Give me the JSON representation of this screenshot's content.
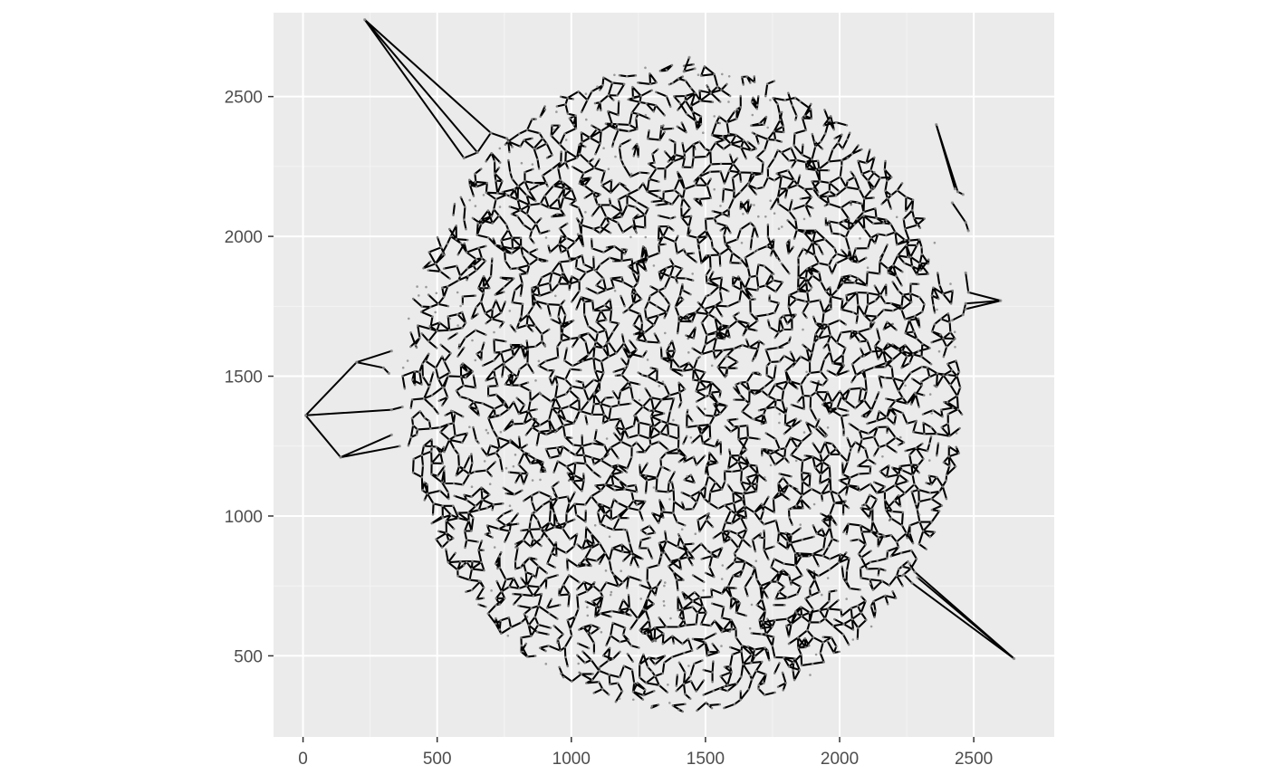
{
  "chart_data": {
    "type": "line",
    "title": "",
    "xlabel": "",
    "ylabel": "",
    "xlim": [
      -110,
      2800
    ],
    "ylim": [
      210,
      2800
    ],
    "x_ticks": [
      0,
      500,
      1000,
      1500,
      2000,
      2500
    ],
    "y_ticks": [
      500,
      1000,
      1500,
      2000,
      2500
    ],
    "x_tick_labels": [
      "0",
      "500",
      "1000",
      "1500",
      "2000",
      "2500"
    ],
    "y_tick_labels": [
      "500",
      "1000",
      "1500",
      "2000",
      "2500"
    ],
    "grid": true,
    "legend": "none",
    "panel_color": "#ebebeb",
    "grid_color": "#ffffff",
    "line_color": "#000000",
    "point_color": "#8c8c8c",
    "description_of_data": [],
    "cluster": {
      "center": [
        1420,
        1460
      ],
      "radius_x": 1050,
      "radius_y": 1160
    },
    "outlier_paths": [
      [
        [
          230,
          2775
        ],
        [
          700,
          2370
        ],
        [
          760,
          2350
        ],
        [
          780,
          2320
        ]
      ],
      [
        [
          230,
          2775
        ],
        [
          650,
          2300
        ],
        [
          700,
          2370
        ]
      ],
      [
        [
          230,
          2775
        ],
        [
          600,
          2280
        ],
        [
          650,
          2300
        ]
      ],
      [
        [
          2360,
          2400
        ],
        [
          2440,
          2160
        ],
        [
          2460,
          2150
        ]
      ],
      [
        [
          2360,
          2400
        ],
        [
          2430,
          2170
        ]
      ],
      [
        [
          2420,
          2120
        ],
        [
          2470,
          2050
        ],
        [
          2480,
          2020
        ]
      ],
      [
        [
          2600,
          1770
        ],
        [
          2480,
          1800
        ],
        [
          2470,
          1870
        ]
      ],
      [
        [
          2600,
          1770
        ],
        [
          2470,
          1760
        ],
        [
          2460,
          1720
        ],
        [
          2420,
          1700
        ]
      ],
      [
        [
          2600,
          1770
        ],
        [
          2470,
          1740
        ]
      ],
      [
        [
          10,
          1360
        ],
        [
          200,
          1550
        ],
        [
          330,
          1590
        ]
      ],
      [
        [
          10,
          1360
        ],
        [
          330,
          1380
        ],
        [
          370,
          1390
        ]
      ],
      [
        [
          10,
          1360
        ],
        [
          140,
          1210
        ],
        [
          360,
          1250
        ]
      ],
      [
        [
          140,
          1210
        ],
        [
          330,
          1290
        ]
      ],
      [
        [
          200,
          1550
        ],
        [
          300,
          1530
        ],
        [
          320,
          1510
        ]
      ],
      [
        [
          2650,
          490
        ],
        [
          2280,
          800
        ],
        [
          2260,
          830
        ]
      ],
      [
        [
          2650,
          490
        ],
        [
          2270,
          760
        ],
        [
          2240,
          790
        ]
      ],
      [
        [
          2650,
          490
        ],
        [
          2290,
          780
        ]
      ],
      [
        [
          1440,
          2640
        ],
        [
          1420,
          2590
        ],
        [
          1460,
          2600
        ]
      ]
    ]
  }
}
